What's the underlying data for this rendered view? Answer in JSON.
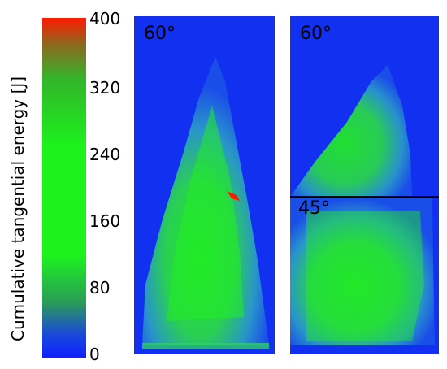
{
  "colorbar": {
    "label": "Cumulative tangential energy [J]",
    "ticks": [
      "400",
      "320",
      "240",
      "160",
      "80",
      "0"
    ],
    "min": 0,
    "max": 400
  },
  "panels": [
    {
      "angle_label": "60°",
      "secondary_label": ""
    },
    {
      "angle_label": "60°",
      "secondary_label": "45°"
    }
  ],
  "colors": {
    "background_blue": "#1230f0",
    "high_green": "#1cf21c",
    "peak_red": "#ff1a00"
  }
}
